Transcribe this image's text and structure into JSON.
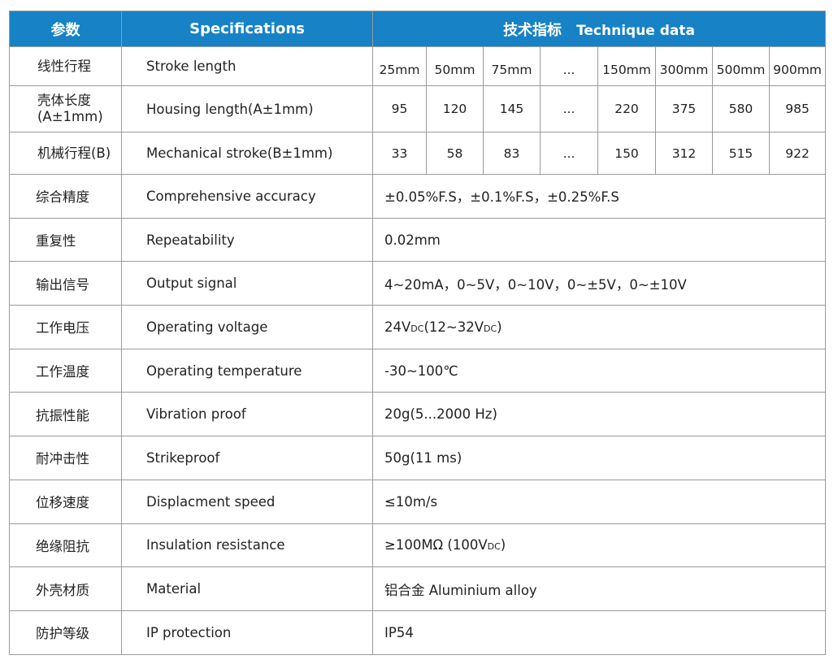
{
  "header": {
    "col1": "参数",
    "col2": "Specifications",
    "col3_cn": "技术指标",
    "col3_en": "Technique data"
  },
  "multi_rows": [
    {
      "cn": "线性行程",
      "en": "Stroke length",
      "values": [
        "25mm",
        "50mm",
        "75mm",
        "...",
        "150mm",
        "300mm",
        "500mm",
        "900mm"
      ]
    },
    {
      "cn": "壳体长度",
      "cn2": "(A±1mm)",
      "en": "Housing length(A±1mm)",
      "values": [
        "95",
        "120",
        "145",
        "...",
        "220",
        "375",
        "580",
        "985"
      ]
    },
    {
      "cn": "机械行程(B)",
      "en": "Mechanical stroke(B±1mm)",
      "values": [
        "33",
        "58",
        "83",
        "...",
        "150",
        "312",
        "515",
        "922"
      ]
    }
  ],
  "rows": [
    {
      "cn": "综合精度",
      "en": "Comprehensive  accuracy",
      "value": "±0.05%F.S，±0.1%F.S，±0.25%F.S"
    },
    {
      "cn": "重复性",
      "en": "Repeatability",
      "value": "0.02mm"
    },
    {
      "cn": "输出信号",
      "en": "Output signal",
      "value": "4~20mA，0~5V，0~10V，0~±5V，0~±10V"
    },
    {
      "cn": "工作电压",
      "en": "Operating voltage",
      "value": "24V",
      "value_dc": "DC",
      "value_b": "(12~32V",
      "value_dc2": "DC",
      "value_c": ")"
    },
    {
      "cn": "工作温度",
      "en": "Operating temperature",
      "value": "-30~100℃"
    },
    {
      "cn": "抗振性能",
      "en": "Vibration  proof",
      "value": "20g(5...2000 Hz)"
    },
    {
      "cn": "耐冲击性",
      "en": "Strikeproof",
      "value": "50g(11 ms)"
    },
    {
      "cn": "位移速度",
      "en": "Displacment speed",
      "value": "≤10m/s"
    },
    {
      "cn": "绝缘阻抗",
      "en": "Insulation resistance",
      "value": "≥100MΩ (100V",
      "value_dc": "DC",
      "value_b": ")"
    },
    {
      "cn": "外壳材质",
      "en": "Material",
      "value": "铝合金  Aluminium alloy"
    },
    {
      "cn": "防护等级",
      "en": "IP  protection",
      "value": "IP54"
    }
  ],
  "colors": {
    "header_bg": "#1782c6",
    "header_text": "#ffffff"
  }
}
